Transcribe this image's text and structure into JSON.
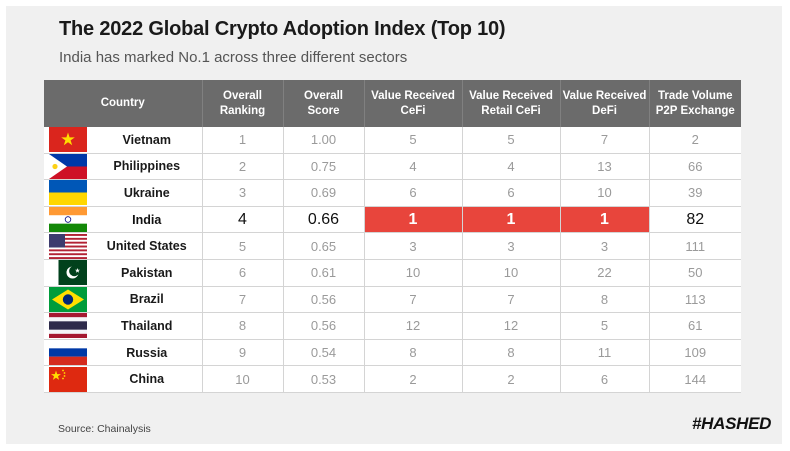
{
  "title": "The 2022 Global Crypto Adoption Index (Top 10)",
  "subtitle": "India has marked No.1 across three different sectors",
  "table": {
    "headers": {
      "country": "Country",
      "rank": [
        "Overall",
        "Ranking"
      ],
      "score": [
        "Overall",
        "Score"
      ],
      "cefi": [
        "Value Received",
        "CeFi"
      ],
      "retail": [
        "Value Received",
        "Retail CeFi"
      ],
      "defi": [
        "Value Received",
        "DeFi"
      ],
      "p2p": [
        "Trade Volume",
        "P2P Exchange"
      ]
    },
    "rows": [
      {
        "flag": "vietnam-flag-icon",
        "country": "Vietnam",
        "rank": "1",
        "score": "1.00",
        "cefi": "5",
        "retail": "5",
        "defi": "7",
        "p2p": "2"
      },
      {
        "flag": "philippines-flag-icon",
        "country": "Philippines",
        "rank": "2",
        "score": "0.75",
        "cefi": "4",
        "retail": "4",
        "defi": "13",
        "p2p": "66"
      },
      {
        "flag": "ukraine-flag-icon",
        "country": "Ukraine",
        "rank": "3",
        "score": "0.69",
        "cefi": "6",
        "retail": "6",
        "defi": "10",
        "p2p": "39"
      },
      {
        "flag": "india-flag-icon",
        "country": "India",
        "rank": "4",
        "score": "0.66",
        "cefi": "1",
        "retail": "1",
        "defi": "1",
        "p2p": "82"
      },
      {
        "flag": "united-states-flag-icon",
        "country": "United States",
        "rank": "5",
        "score": "0.65",
        "cefi": "3",
        "retail": "3",
        "defi": "3",
        "p2p": "111"
      },
      {
        "flag": "pakistan-flag-icon",
        "country": "Pakistan",
        "rank": "6",
        "score": "0.61",
        "cefi": "10",
        "retail": "10",
        "defi": "22",
        "p2p": "50"
      },
      {
        "flag": "brazil-flag-icon",
        "country": "Brazil",
        "rank": "7",
        "score": "0.56",
        "cefi": "7",
        "retail": "7",
        "defi": "8",
        "p2p": "113"
      },
      {
        "flag": "thailand-flag-icon",
        "country": "Thailand",
        "rank": "8",
        "score": "0.56",
        "cefi": "12",
        "retail": "12",
        "defi": "5",
        "p2p": "61"
      },
      {
        "flag": "russia-flag-icon",
        "country": "Russia",
        "rank": "9",
        "score": "0.54",
        "cefi": "8",
        "retail": "8",
        "defi": "11",
        "p2p": "109"
      },
      {
        "flag": "china-flag-icon",
        "country": "China",
        "rank": "10",
        "score": "0.53",
        "cefi": "2",
        "retail": "2",
        "defi": "6",
        "p2p": "144"
      }
    ],
    "highlight_color": "#e8453c",
    "header_color": "#6b6b6b"
  },
  "source": "Source: Chainalysis",
  "logo": "#HASHED"
}
